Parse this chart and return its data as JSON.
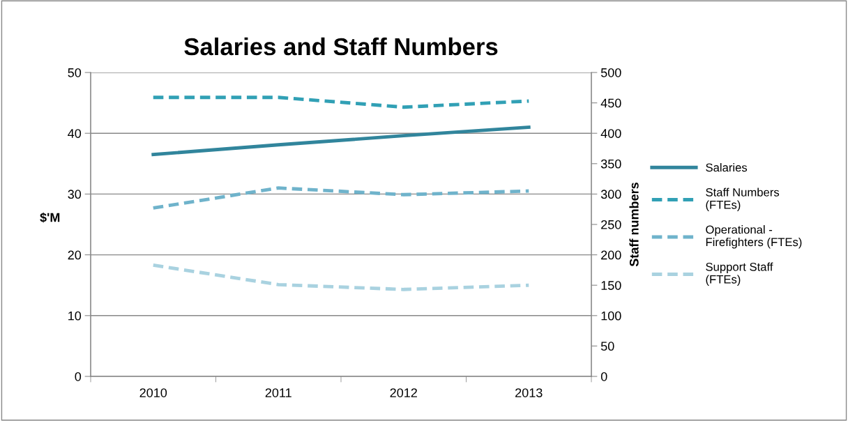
{
  "chart_data": {
    "type": "line",
    "title": "Salaries and Staff Numbers",
    "ylabel": "$'M",
    "y2label": "Staff numbers",
    "categories": [
      "2010",
      "2011",
      "2012",
      "2013"
    ],
    "series": [
      {
        "name": "Salaries",
        "color": "#31859c",
        "values": [
          36.5,
          38.1,
          39.6,
          41.0
        ],
        "line_style": "solid"
      },
      {
        "name": "Staff Numbers\n(FTEs)",
        "color": "#31a0b5",
        "values": [
          459,
          459,
          443,
          453
        ],
        "axis": "y2",
        "line_style": "dashed"
      },
      {
        "name": "Operational -\nFirefighters (FTEs)",
        "color": "#6fb3cb",
        "values": [
          277,
          310,
          299,
          305
        ],
        "axis": "y2",
        "line_style": "dashed"
      },
      {
        "name": "Support Staff\n(FTEs)",
        "color": "#a9d2e0",
        "values": [
          183,
          151,
          143,
          150
        ],
        "axis": "y2",
        "line_style": "dashed"
      }
    ],
    "ylim": [
      0,
      50
    ],
    "yticks": [
      0,
      10,
      20,
      30,
      40,
      50
    ],
    "y2lim": [
      0,
      500
    ],
    "y2ticks": [
      0,
      50,
      100,
      150,
      200,
      250,
      300,
      350,
      400,
      450,
      500
    ],
    "grid": "y",
    "legend": "right",
    "marker": "none"
  }
}
